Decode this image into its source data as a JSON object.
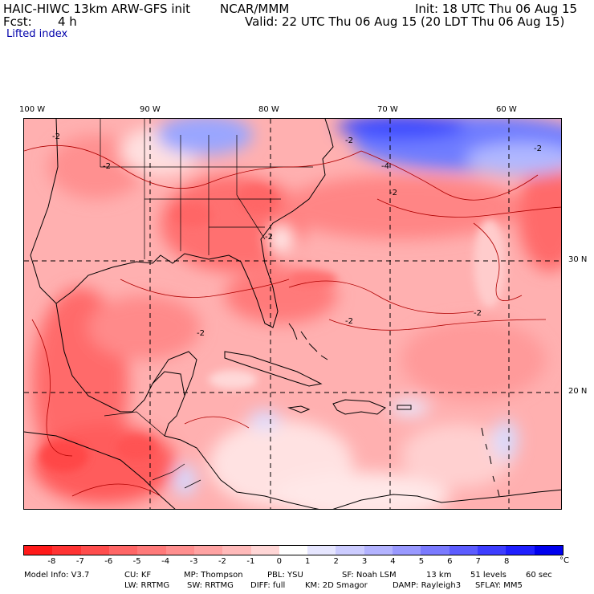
{
  "header": {
    "model_title": "HAIC-HIWC 13km ARW-GFS init",
    "org": "NCAR/MMM",
    "init": "Init: 18 UTC Thu 06 Aug 15",
    "fcst_label": "Fcst:",
    "fcst_value": "4 h",
    "valid": "Valid: 22 UTC Thu 06 Aug 15 (20 LDT Thu 06 Aug 15)",
    "field": "Lifted index"
  },
  "map": {
    "lon_labels": [
      "100 W",
      "90 W",
      "80 W",
      "70 W",
      "60 W"
    ],
    "lat_labels": [
      "30 N",
      "20 N"
    ],
    "contour_labels": [
      "-2",
      "-2",
      "-2",
      "-4",
      "-2",
      "-2",
      "-2",
      "-2",
      "-2",
      "-2"
    ]
  },
  "colorbar": {
    "ticks": [
      "-8",
      "-7",
      "-6",
      "-5",
      "-4",
      "-3",
      "-2",
      "-1",
      "0",
      "1",
      "2",
      "3",
      "4",
      "5",
      "6",
      "7",
      "8"
    ],
    "unit": "°C",
    "colors": [
      "#ff1a1a",
      "#ff3333",
      "#ff4d4d",
      "#ff6666",
      "#ff7a7a",
      "#ff8f8f",
      "#ffa3a3",
      "#ffbaba",
      "#ffd6d6",
      "#ffffff",
      "#e6e6ff",
      "#ccccff",
      "#b3b3ff",
      "#9999ff",
      "#7a7aff",
      "#5c5cff",
      "#3d3dff",
      "#1f1fff",
      "#0000ee"
    ]
  },
  "footer": {
    "model_info": "Model Info: V3.7",
    "cu": "CU: KF",
    "mp": "MP: Thompson",
    "pbl": "PBL: YSU",
    "sf": "SF: Noah LSM",
    "res": "13 km",
    "levels": "51 levels",
    "dt": "60 sec",
    "lw": "LW: RRTMG",
    "sw": "SW: RRTMG",
    "diff": "DIFF: full",
    "km": "KM: 2D Smagor",
    "damp": "DAMP: Rayleigh3",
    "sflay": "SFLAY: MM5"
  }
}
